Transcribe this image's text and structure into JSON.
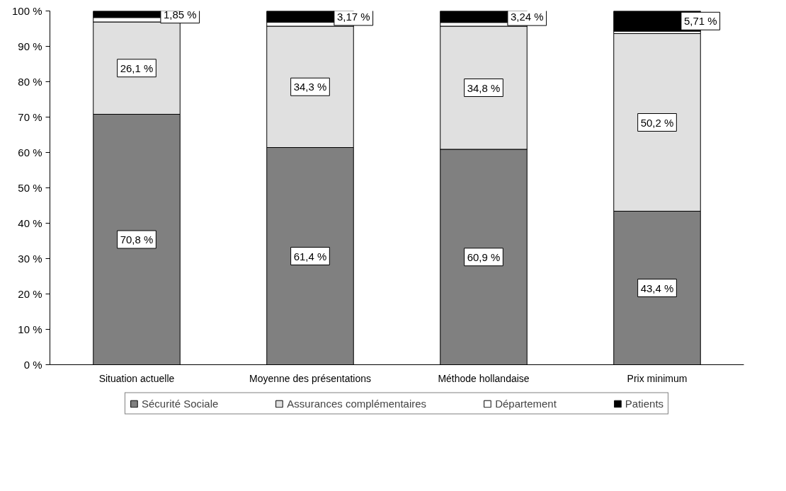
{
  "chart_data": {
    "type": "bar",
    "stacked": true,
    "categories": [
      "Situation actuelle",
      "Moyenne des présentations",
      "Méthode hollandaise",
      "Prix minimum"
    ],
    "series": [
      {
        "name": "Sécurité Sociale",
        "color": "#808080",
        "values": [
          70.8,
          61.4,
          60.9,
          43.4
        ],
        "value_labels": [
          "70,8 %",
          "61,4 %",
          "60,9 %",
          "43,4 %"
        ]
      },
      {
        "name": "Assurances complémentaires",
        "color": "#e0e0e0",
        "values": [
          26.1,
          34.3,
          34.8,
          50.2
        ],
        "value_labels": [
          "26,1 %",
          "34,3 %",
          "34,8 %",
          "50,2 %"
        ]
      },
      {
        "name": "Département",
        "color": "#ffffff",
        "values": [
          1.25,
          1.13,
          1.06,
          0.69
        ]
      },
      {
        "name": "Patients",
        "color": "#000000",
        "values": [
          1.85,
          3.17,
          3.24,
          5.71
        ],
        "value_labels": [
          "1,85 %",
          "3,17 %",
          "3,24 %",
          "5,71 %"
        ]
      }
    ],
    "ylim": [
      0,
      100
    ],
    "yticks": [
      {
        "value": 0,
        "label": "0 %"
      },
      {
        "value": 10,
        "label": "10 %"
      },
      {
        "value": 20,
        "label": "20 %"
      },
      {
        "value": 30,
        "label": "30 %"
      },
      {
        "value": 40,
        "label": "40 %"
      },
      {
        "value": 50,
        "label": "50 %"
      },
      {
        "value": 60,
        "label": "60 %"
      },
      {
        "value": 70,
        "label": "70 %"
      },
      {
        "value": 80,
        "label": "80 %"
      },
      {
        "value": 90,
        "label": "90 %"
      },
      {
        "value": 100,
        "label": "100 %"
      }
    ],
    "legend": "bottom",
    "grid": false
  }
}
